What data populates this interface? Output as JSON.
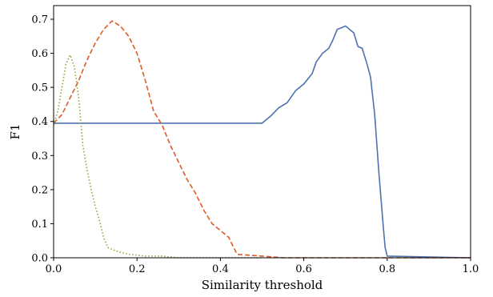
{
  "chart_data": {
    "type": "line",
    "title": "",
    "xlabel": "Similarity threshold",
    "ylabel": "F1",
    "xlim": [
      0.0,
      1.0
    ],
    "ylim": [
      0.0,
      0.74
    ],
    "x_ticks": [
      "0.0",
      "0.2",
      "0.4",
      "0.6",
      "0.8",
      "1.0"
    ],
    "x_tick_values": [
      0.0,
      0.2,
      0.4,
      0.6,
      0.8,
      1.0
    ],
    "y_ticks": [
      "0.0",
      "0.1",
      "0.2",
      "0.3",
      "0.4",
      "0.5",
      "0.6",
      "0.7"
    ],
    "y_tick_values": [
      0.0,
      0.1,
      0.2,
      0.3,
      0.4,
      0.5,
      0.6,
      0.7
    ],
    "grid": false,
    "legend": "none",
    "series": [
      {
        "color": "#4c72b0",
        "style": "solid",
        "points": [
          [
            0.0,
            0.395
          ],
          [
            0.5,
            0.395
          ],
          [
            0.52,
            0.415
          ],
          [
            0.54,
            0.44
          ],
          [
            0.56,
            0.455
          ],
          [
            0.58,
            0.49
          ],
          [
            0.6,
            0.51
          ],
          [
            0.62,
            0.54
          ],
          [
            0.63,
            0.575
          ],
          [
            0.645,
            0.6
          ],
          [
            0.66,
            0.615
          ],
          [
            0.67,
            0.64
          ],
          [
            0.68,
            0.67
          ],
          [
            0.69,
            0.675
          ],
          [
            0.7,
            0.68
          ],
          [
            0.72,
            0.66
          ],
          [
            0.73,
            0.62
          ],
          [
            0.74,
            0.615
          ],
          [
            0.75,
            0.575
          ],
          [
            0.76,
            0.53
          ],
          [
            0.77,
            0.42
          ],
          [
            0.78,
            0.25
          ],
          [
            0.79,
            0.1
          ],
          [
            0.795,
            0.03
          ],
          [
            0.8,
            0.005
          ],
          [
            1.0,
            0.0
          ]
        ]
      },
      {
        "color": "#dd5a2b",
        "style": "dashed",
        "points": [
          [
            0.0,
            0.395
          ],
          [
            0.02,
            0.42
          ],
          [
            0.04,
            0.47
          ],
          [
            0.06,
            0.52
          ],
          [
            0.08,
            0.58
          ],
          [
            0.1,
            0.63
          ],
          [
            0.12,
            0.67
          ],
          [
            0.14,
            0.695
          ],
          [
            0.16,
            0.68
          ],
          [
            0.18,
            0.65
          ],
          [
            0.2,
            0.6
          ],
          [
            0.22,
            0.52
          ],
          [
            0.24,
            0.43
          ],
          [
            0.26,
            0.39
          ],
          [
            0.28,
            0.33
          ],
          [
            0.3,
            0.28
          ],
          [
            0.32,
            0.23
          ],
          [
            0.34,
            0.19
          ],
          [
            0.36,
            0.14
          ],
          [
            0.38,
            0.1
          ],
          [
            0.4,
            0.08
          ],
          [
            0.42,
            0.06
          ],
          [
            0.44,
            0.01
          ],
          [
            0.5,
            0.005
          ],
          [
            0.55,
            0.0
          ],
          [
            1.0,
            0.0
          ]
        ]
      },
      {
        "color": "#8ea63a",
        "style": "dotted",
        "points": [
          [
            0.0,
            0.39
          ],
          [
            0.01,
            0.43
          ],
          [
            0.02,
            0.5
          ],
          [
            0.03,
            0.57
          ],
          [
            0.04,
            0.595
          ],
          [
            0.05,
            0.56
          ],
          [
            0.06,
            0.47
          ],
          [
            0.07,
            0.33
          ],
          [
            0.08,
            0.26
          ],
          [
            0.09,
            0.2
          ],
          [
            0.1,
            0.15
          ],
          [
            0.11,
            0.11
          ],
          [
            0.12,
            0.06
          ],
          [
            0.13,
            0.03
          ],
          [
            0.15,
            0.02
          ],
          [
            0.18,
            0.01
          ],
          [
            0.22,
            0.005
          ],
          [
            0.26,
            0.005
          ],
          [
            0.3,
            0.0
          ],
          [
            0.5,
            0.0
          ]
        ]
      }
    ]
  }
}
